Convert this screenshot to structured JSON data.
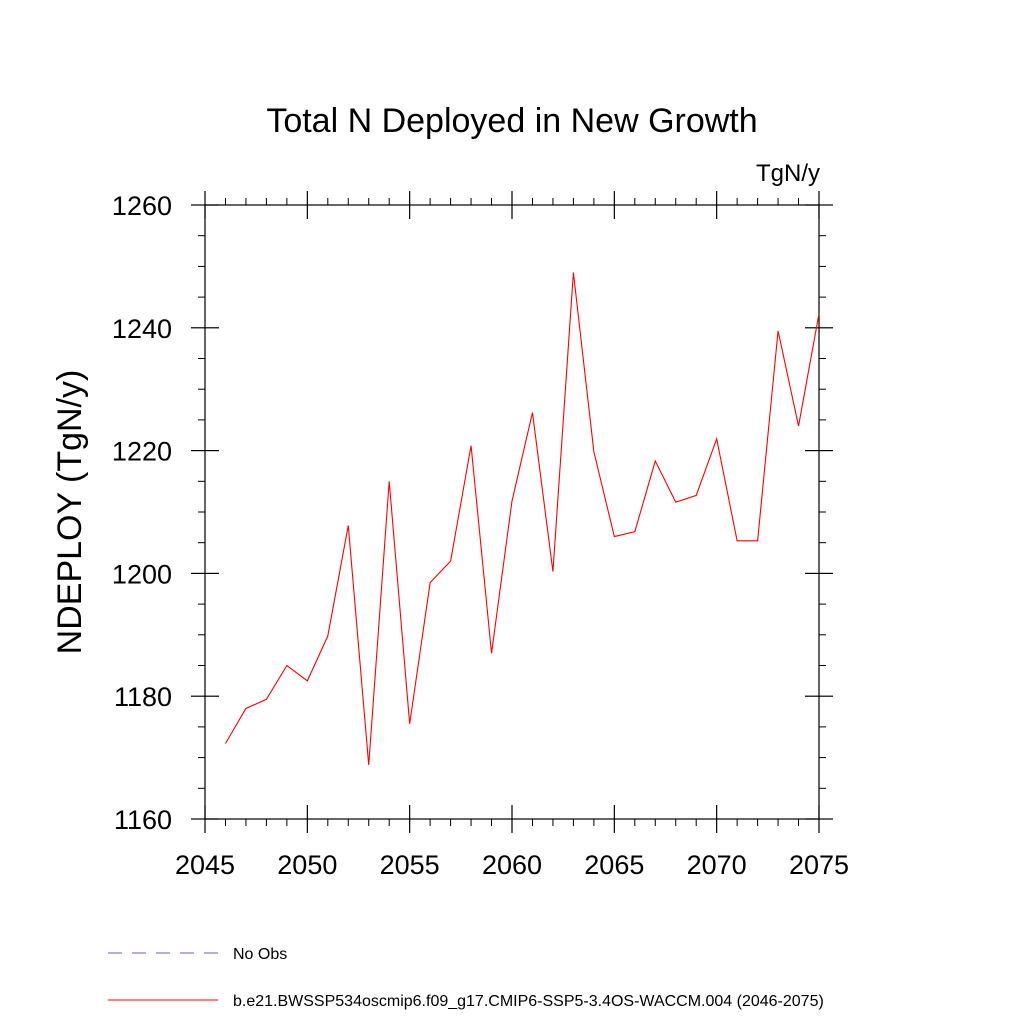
{
  "chart_data": {
    "type": "line",
    "title": "Total N Deployed in New Growth",
    "units": "TgN/y",
    "ylabel": "NDEPLOY  (TgN/y)",
    "xlabel": "",
    "xlim": [
      2045,
      2075
    ],
    "ylim": [
      1160,
      1260
    ],
    "xticks": [
      2045,
      2050,
      2055,
      2060,
      2065,
      2070,
      2075
    ],
    "yticks": [
      1160,
      1180,
      1200,
      1220,
      1240,
      1260
    ],
    "grid": false,
    "legend_position": "bottom-left",
    "series": [
      {
        "name": "b.e21.BWSSP534oscmip6.f09_g17.CMIP6-SSP5-3.4OS-WACCM.004 (2046-2075)",
        "color": "#ff0000",
        "style": "solid",
        "x": [
          2046,
          2047,
          2048,
          2049,
          2050,
          2051,
          2052,
          2053,
          2054,
          2055,
          2056,
          2057,
          2058,
          2059,
          2060,
          2061,
          2062,
          2063,
          2064,
          2065,
          2066,
          2067,
          2068,
          2069,
          2070,
          2071,
          2072,
          2073,
          2074,
          2075
        ],
        "y": [
          1172.3,
          1178.0,
          1179.5,
          1185.0,
          1182.5,
          1189.8,
          1207.8,
          1168.8,
          1215.0,
          1175.5,
          1198.5,
          1202.0,
          1220.8,
          1187.0,
          1211.8,
          1226.2,
          1200.3,
          1249.0,
          1219.8,
          1206.0,
          1206.8,
          1218.3,
          1211.6,
          1212.7,
          1221.9,
          1205.3,
          1205.3,
          1239.5,
          1224.0,
          1242.3
        ]
      },
      {
        "name": "No Obs",
        "color": "#6a5acd",
        "style": "dashed",
        "x": [],
        "y": []
      }
    ]
  }
}
